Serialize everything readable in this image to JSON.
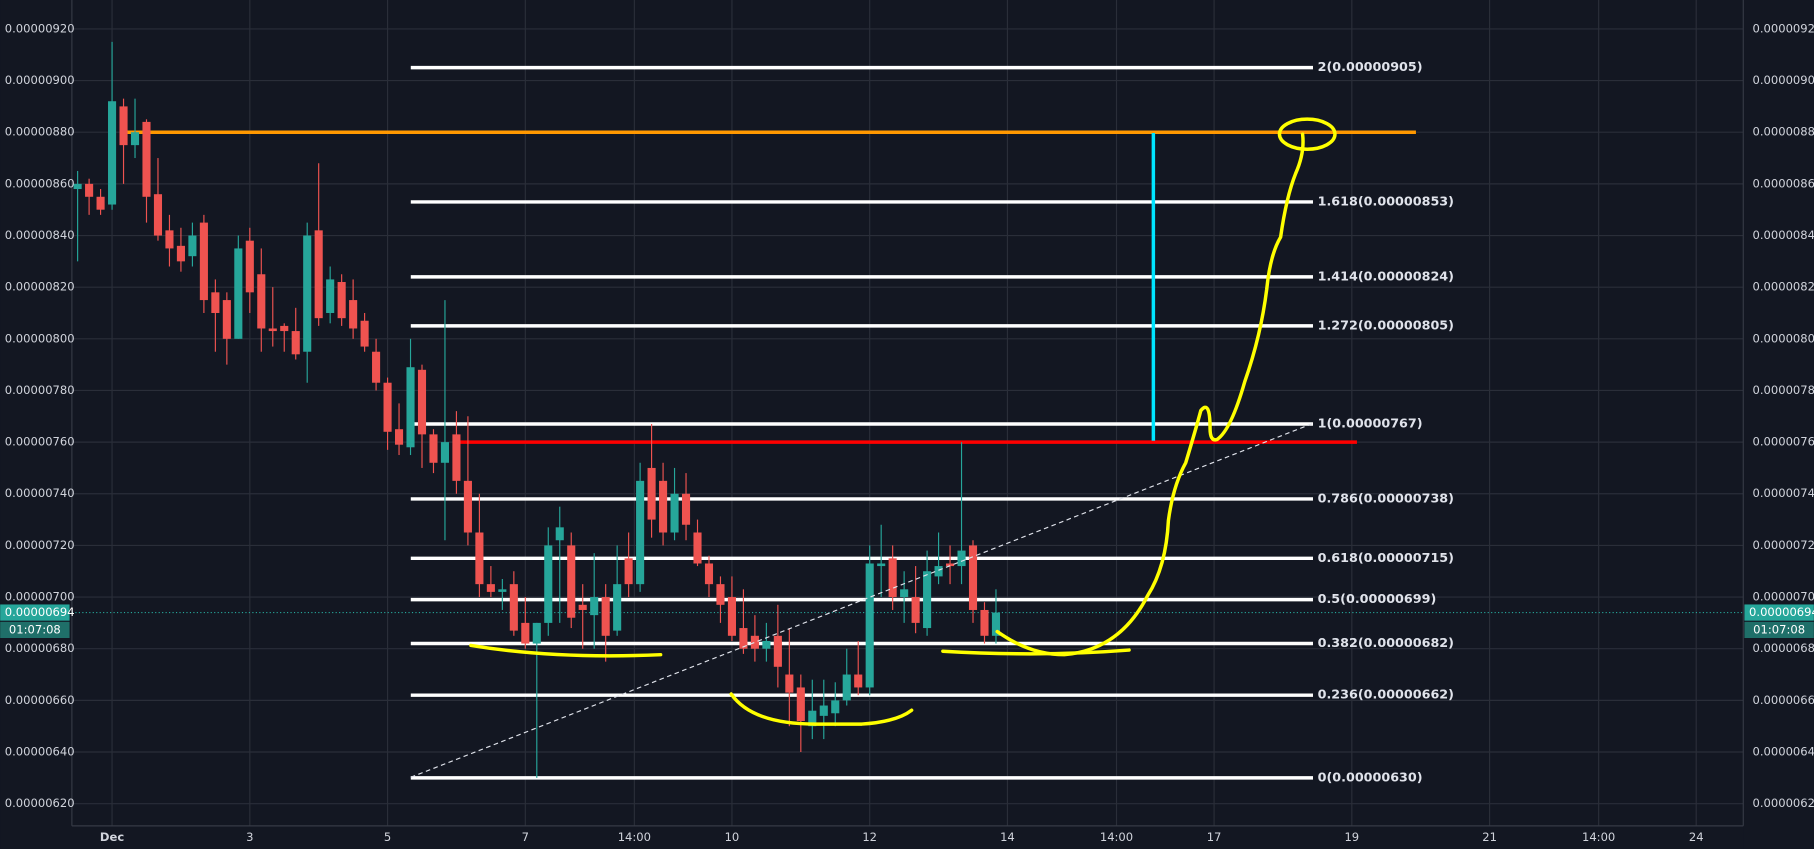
{
  "chart_data": {
    "type": "candlestick",
    "x": [
      -3,
      -2,
      -1,
      0,
      1,
      2,
      3,
      4,
      5,
      6,
      7,
      8,
      9,
      10,
      11,
      12,
      13,
      14,
      15,
      16,
      17,
      18,
      19,
      20,
      21,
      22,
      23,
      24,
      25,
      26,
      27,
      28,
      29,
      30,
      31,
      32,
      33,
      34,
      35,
      36,
      37,
      38,
      39,
      40,
      41,
      42,
      43,
      44,
      45,
      46,
      47,
      48,
      49,
      50,
      51,
      52,
      53,
      54,
      55,
      56,
      57,
      58,
      59,
      60,
      61,
      62,
      63,
      64,
      65,
      66,
      67,
      68,
      69,
      70,
      71,
      72,
      73,
      74,
      75,
      76,
      77
    ],
    "open": [
      8.58e-06,
      8.6e-06,
      8.55e-06,
      8.52e-06,
      8.9e-06,
      8.75e-06,
      8.84e-06,
      8.56e-06,
      8.42e-06,
      8.36e-06,
      8.32e-06,
      8.45e-06,
      8.18e-06,
      8.15e-06,
      8e-06,
      8.38e-06,
      8.25e-06,
      8.04e-06,
      8.05e-06,
      8.03e-06,
      7.95e-06,
      8.42e-06,
      8.1e-06,
      8.22e-06,
      8.15e-06,
      8.07e-06,
      7.95e-06,
      7.83e-06,
      7.65e-06,
      7.58e-06,
      7.88e-06,
      7.63e-06,
      7.52e-06,
      7.63e-06,
      7.45e-06,
      7.25e-06,
      7.05e-06,
      7.02e-06,
      7.05e-06,
      6.9e-06,
      6.82e-06,
      6.9e-06,
      7.22e-06,
      7.2e-06,
      6.97e-06,
      6.93e-06,
      7e-06,
      6.87e-06,
      7.15e-06,
      7.05e-06,
      7.5e-06,
      7.45e-06,
      7.25e-06,
      7.4e-06,
      7.25e-06,
      7.13e-06,
      7.05e-06,
      7e-06,
      6.88e-06,
      6.85e-06,
      6.8e-06,
      6.85e-06,
      6.7e-06,
      6.65e-06,
      6.5e-06,
      6.54e-06,
      6.55e-06,
      6.6e-06,
      6.7e-06,
      6.65e-06,
      7.12e-06,
      7.15e-06,
      7e-06,
      7e-06,
      6.88e-06,
      7.08e-06,
      7.13e-06,
      7.12e-06,
      7.2e-06,
      6.95e-06,
      6.85e-06
    ],
    "high": [
      8.65e-06,
      8.62e-06,
      8.58e-06,
      9.15e-06,
      8.93e-06,
      8.93e-06,
      8.85e-06,
      8.7e-06,
      8.48e-06,
      8.43e-06,
      8.45e-06,
      8.48e-06,
      8.23e-06,
      8.18e-06,
      8.4e-06,
      8.43e-06,
      8.35e-06,
      8.2e-06,
      8.06e-06,
      8.12e-06,
      8.45e-06,
      8.68e-06,
      8.28e-06,
      8.25e-06,
      8.23e-06,
      8.1e-06,
      8e-06,
      7.85e-06,
      7.75e-06,
      8e-06,
      7.9e-06,
      7.65e-06,
      8.15e-06,
      7.72e-06,
      7.7e-06,
      7.4e-06,
      7.12e-06,
      7.07e-06,
      7.1e-06,
      7e-06,
      6.9e-06,
      7.27e-06,
      7.35e-06,
      7.25e-06,
      7.05e-06,
      7.17e-06,
      7.05e-06,
      7.2e-06,
      7.25e-06,
      7.52e-06,
      7.67e-06,
      7.52e-06,
      7.5e-06,
      7.48e-06,
      7.3e-06,
      7.16e-06,
      7.08e-06,
      7.08e-06,
      7.03e-06,
      6.93e-06,
      6.9e-06,
      6.97e-06,
      6.88e-06,
      6.7e-06,
      6.68e-06,
      6.68e-06,
      6.67e-06,
      6.8e-06,
      6.83e-06,
      7.2e-06,
      7.28e-06,
      7.2e-06,
      7.1e-06,
      7.12e-06,
      7.18e-06,
      7.25e-06,
      7.2e-06,
      7.6e-06,
      7.22e-06,
      6.98e-06,
      7.03e-06
    ],
    "low": [
      8.3e-06,
      8.48e-06,
      8.48e-06,
      8.5e-06,
      8.6e-06,
      8.7e-06,
      8.45e-06,
      8.38e-06,
      8.28e-06,
      8.26e-06,
      8.28e-06,
      8.1e-06,
      7.95e-06,
      7.9e-06,
      8e-06,
      8.1e-06,
      7.95e-06,
      7.97e-06,
      7.95e-06,
      7.92e-06,
      7.83e-06,
      8.05e-06,
      8.06e-06,
      8.05e-06,
      8e-06,
      7.95e-06,
      7.8e-06,
      7.57e-06,
      7.55e-06,
      7.55e-06,
      7.5e-06,
      7.48e-06,
      7.22e-06,
      7.4e-06,
      7.2e-06,
      7e-06,
      7e-06,
      6.95e-06,
      6.85e-06,
      6.8e-06,
      6.3e-06,
      6.85e-06,
      6.9e-06,
      6.88e-06,
      6.8e-06,
      6.8e-06,
      6.75e-06,
      6.85e-06,
      7e-06,
      7.02e-06,
      7.23e-06,
      7.2e-06,
      7.22e-06,
      7.22e-06,
      7.12e-06,
      7e-06,
      6.9e-06,
      6.83e-06,
      6.78e-06,
      6.75e-06,
      6.75e-06,
      6.65e-06,
      6.5e-06,
      6.4e-06,
      6.45e-06,
      6.45e-06,
      6.5e-06,
      6.58e-06,
      6.62e-06,
      6.62e-06,
      7e-06,
      6.95e-06,
      6.9e-06,
      6.86e-06,
      6.85e-06,
      7.05e-06,
      7.05e-06,
      7.05e-06,
      6.9e-06,
      6.82e-06,
      6.82e-06
    ],
    "close": [
      8.6e-06,
      8.55e-06,
      8.5e-06,
      8.92e-06,
      8.75e-06,
      8.8e-06,
      8.55e-06,
      8.4e-06,
      8.35e-06,
      8.3e-06,
      8.4e-06,
      8.15e-06,
      8.1e-06,
      8e-06,
      8.35e-06,
      8.18e-06,
      8.04e-06,
      8.03e-06,
      8.03e-06,
      7.94e-06,
      8.4e-06,
      8.08e-06,
      8.23e-06,
      8.08e-06,
      8.04e-06,
      7.97e-06,
      7.83e-06,
      7.64e-06,
      7.59e-06,
      7.89e-06,
      7.63e-06,
      7.52e-06,
      7.6e-06,
      7.45e-06,
      7.25e-06,
      7.05e-06,
      7.02e-06,
      7.03e-06,
      6.87e-06,
      6.82e-06,
      6.9e-06,
      7.2e-06,
      7.27e-06,
      6.92e-06,
      6.95e-06,
      7e-06,
      6.85e-06,
      7.05e-06,
      7.05e-06,
      7.45e-06,
      7.3e-06,
      7.25e-06,
      7.4e-06,
      7.28e-06,
      7.13e-06,
      7.05e-06,
      6.97e-06,
      6.85e-06,
      6.8e-06,
      6.8e-06,
      6.83e-06,
      6.73e-06,
      6.63e-06,
      6.52e-06,
      6.56e-06,
      6.58e-06,
      6.6e-06,
      6.7e-06,
      6.65e-06,
      7.13e-06,
      7.13e-06,
      7e-06,
      7.03e-06,
      6.9e-06,
      7.1e-06,
      7.12e-06,
      7.12e-06,
      7.18e-06,
      6.95e-06,
      6.85e-06,
      6.94e-06
    ],
    "up_color": "#26a69a",
    "down_color": "#ef5350",
    "xlim": [
      -3.5,
      142.1
    ],
    "xticks": [
      {
        "value": 0,
        "label": "Dec"
      },
      {
        "value": 12,
        "label": "3"
      },
      {
        "value": 24,
        "label": "5"
      },
      {
        "value": 36,
        "label": "7"
      },
      {
        "value": 45.5,
        "label": "14:00"
      },
      {
        "value": 54,
        "label": "10"
      },
      {
        "value": 66,
        "label": "12"
      },
      {
        "value": 78,
        "label": "14"
      },
      {
        "value": 87.5,
        "label": "14:00"
      },
      {
        "value": 96,
        "label": "17"
      },
      {
        "value": 108,
        "label": "19"
      },
      {
        "value": 120,
        "label": "21"
      },
      {
        "value": 129.5,
        "label": "14:00"
      },
      {
        "value": 138,
        "label": "24"
      }
    ],
    "ylim": [
      6.114e-06,
      9.312e-06
    ],
    "yticks": [
      {
        "value": 6.2e-06,
        "label": "0.00000620"
      },
      {
        "value": 6.4e-06,
        "label": "0.00000640"
      },
      {
        "value": 6.6e-06,
        "label": "0.00000660"
      },
      {
        "value": 6.8e-06,
        "label": "0.00000680"
      },
      {
        "value": 7e-06,
        "label": "0.00000700"
      },
      {
        "value": 7.2e-06,
        "label": "0.00000720"
      },
      {
        "value": 7.4e-06,
        "label": "0.00000740"
      },
      {
        "value": 7.6e-06,
        "label": "0.00000760"
      },
      {
        "value": 7.8e-06,
        "label": "0.00000780"
      },
      {
        "value": 8e-06,
        "label": "0.00000800"
      },
      {
        "value": 8.2e-06,
        "label": "0.00000820"
      },
      {
        "value": 8.4e-06,
        "label": "0.00000840"
      },
      {
        "value": 8.6e-06,
        "label": "0.00000860"
      },
      {
        "value": 8.8e-06,
        "label": "0.00000880"
      },
      {
        "value": 9e-06,
        "label": "0.00000900"
      },
      {
        "value": 9.2e-06,
        "label": "0.00000920"
      }
    ],
    "grid": true,
    "last_price": {
      "value": 6.94e-06,
      "label": "0.00000694"
    },
    "countdown": "01:07:08",
    "levels": [
      {
        "value": 9.05e-06,
        "label": "2(0.00000905)"
      },
      {
        "value": 8.53e-06,
        "label": "1.618(0.00000853)"
      },
      {
        "value": 8.24e-06,
        "label": "1.414(0.00000824)"
      },
      {
        "value": 8.05e-06,
        "label": "1.272(0.00000805)"
      },
      {
        "value": 7.67e-06,
        "label": "1(0.00000767)"
      },
      {
        "value": 7.38e-06,
        "label": "0.786(0.00000738)"
      },
      {
        "value": 7.15e-06,
        "label": "0.618(0.00000715)"
      },
      {
        "value": 6.99e-06,
        "label": "0.5(0.00000699)"
      },
      {
        "value": 6.82e-06,
        "label": "0.382(0.00000682)"
      },
      {
        "value": 6.62e-06,
        "label": "0.236(0.00000662)"
      },
      {
        "value": 6.3e-06,
        "label": "0(0.00000630)"
      }
    ],
    "horizontal_lines": [
      {
        "value": 8.8e-06,
        "color": "#ff9800"
      },
      {
        "value": 7.6e-06,
        "color": "#ff0000"
      }
    ]
  }
}
